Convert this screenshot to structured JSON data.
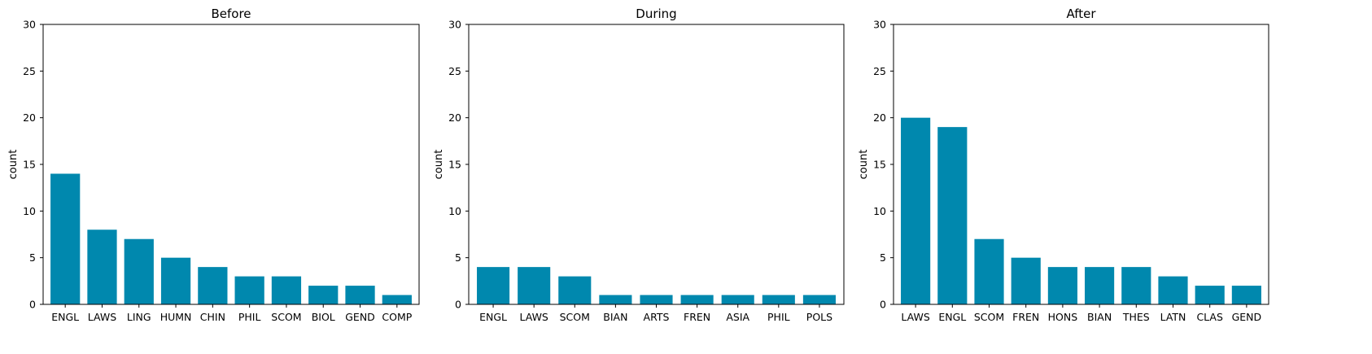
{
  "chart_data": [
    {
      "type": "bar",
      "title": "Before",
      "xlabel": "",
      "ylabel": "count",
      "ylim": [
        0,
        30
      ],
      "yticks": [
        0,
        5,
        10,
        15,
        20,
        25,
        30
      ],
      "categories": [
        "ENGL",
        "LAWS",
        "LING",
        "HUMN",
        "CHIN",
        "PHIL",
        "SCOM",
        "BIOL",
        "GEND",
        "COMP"
      ],
      "values": [
        14,
        8,
        7,
        5,
        4,
        3,
        3,
        2,
        2,
        1
      ],
      "color": "#0088ae",
      "grid": false
    },
    {
      "type": "bar",
      "title": "During",
      "xlabel": "",
      "ylabel": "count",
      "ylim": [
        0,
        30
      ],
      "yticks": [
        0,
        5,
        10,
        15,
        20,
        25,
        30
      ],
      "categories": [
        "ENGL",
        "LAWS",
        "SCOM",
        "BIAN",
        "ARTS",
        "FREN",
        "ASIA",
        "PHIL",
        "POLS"
      ],
      "values": [
        4,
        4,
        3,
        1,
        1,
        1,
        1,
        1,
        1
      ],
      "color": "#0088ae",
      "grid": false
    },
    {
      "type": "bar",
      "title": "After",
      "xlabel": "",
      "ylabel": "count",
      "ylim": [
        0,
        30
      ],
      "yticks": [
        0,
        5,
        10,
        15,
        20,
        25,
        30
      ],
      "categories": [
        "LAWS",
        "ENGL",
        "SCOM",
        "FREN",
        "HONS",
        "BIAN",
        "THES",
        "LATN",
        "CLAS",
        "GEND"
      ],
      "values": [
        20,
        19,
        7,
        5,
        4,
        4,
        4,
        3,
        2,
        2
      ],
      "color": "#0088ae",
      "grid": false
    }
  ]
}
